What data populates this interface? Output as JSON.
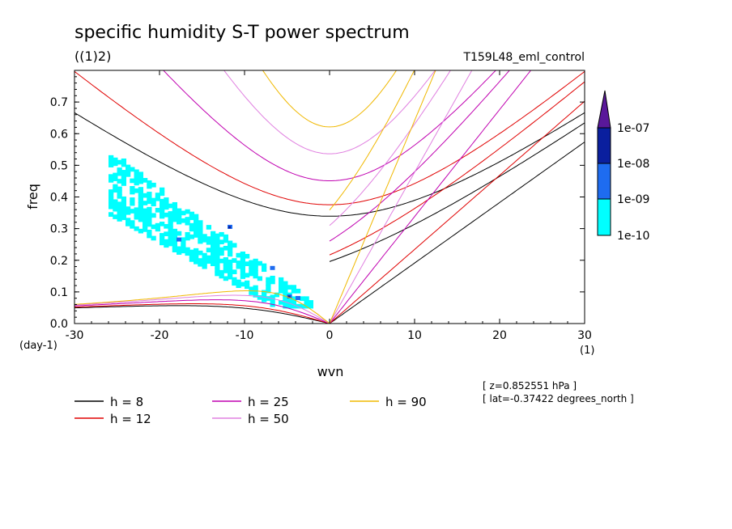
{
  "chart_data": {
    "type": "line",
    "title": "specific humidity S-T power spectrum",
    "subtitle": "((1)2)",
    "run_label": "T159L48_eml_control",
    "xlabel": "wvn",
    "ylabel": "freq",
    "x_units": "(1)",
    "y_units": "(day-1)",
    "xlim": [
      -30,
      30
    ],
    "ylim": [
      0,
      0.8
    ],
    "x_ticks": [
      -30,
      -20,
      -10,
      0,
      10,
      20,
      30
    ],
    "y_ticks": [
      0.0,
      0.1,
      0.2,
      0.3,
      0.4,
      0.5,
      0.6,
      0.7
    ],
    "x_tick_labels": [
      "-30",
      "-20",
      "-10",
      "0",
      "10",
      "20",
      "30"
    ],
    "y_tick_labels": [
      "0.0",
      "0.1",
      "0.2",
      "0.3",
      "0.4",
      "0.5",
      "0.6",
      "0.7"
    ],
    "colorbar": {
      "labels": [
        "1e-07",
        "1e-08",
        "1e-09",
        "1e-10"
      ],
      "colors": [
        "#5a189a",
        "#0a1f9e",
        "#1e6cf0",
        "#00ffff"
      ]
    },
    "info_lines": [
      "[ z=0.852551 hPa ]",
      "[ lat=-0.37422 degrees_north ]"
    ],
    "series": [
      {
        "name": "h =  8",
        "h": 8,
        "color": "#000000"
      },
      {
        "name": "h = 12",
        "h": 12,
        "color": "#e00000"
      },
      {
        "name": "h = 25",
        "h": 25,
        "color": "#c000b0"
      },
      {
        "name": "h = 50",
        "h": 50,
        "color": "#e080e0"
      },
      {
        "name": "h = 90",
        "h": 90,
        "color": "#f0b800"
      }
    ],
    "spectrum_region": {
      "description_levels": "shaded power >= 1e-10 concentrated near wvn -25..-3, freq 0.05..0.5"
    }
  }
}
